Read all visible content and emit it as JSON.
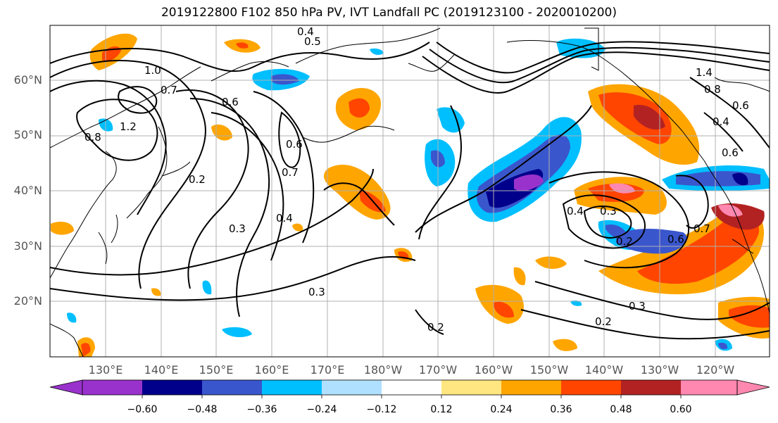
{
  "title": "2019122800 F102 850 hPa PV, IVT Landfall PC (2019123100 - 2020010200)",
  "lat_labels": [
    "60°N",
    "50°N",
    "40°N",
    "30°N",
    "20°N"
  ],
  "lon_labels": [
    "130°E",
    "140°E",
    "150°E",
    "160°E",
    "170°E",
    "180°W",
    "170°W",
    "160°W",
    "150°W",
    "140°W",
    "130°W",
    "120°W"
  ],
  "colorbar": {
    "colors": [
      "#9932cc",
      "#00008b",
      "#3a56cc",
      "#00bfff",
      "#b0e0ff",
      "#ffffff",
      "#ffe680",
      "#ffa500",
      "#ff4500",
      "#b22222",
      "#ff88b0"
    ],
    "tick_labels": [
      "−0.60",
      "−0.48",
      "−0.36",
      "−0.24",
      "−0.12",
      "0.12",
      "0.24",
      "0.36",
      "0.48",
      "0.60"
    ]
  },
  "contour_labels": [
    "0.4",
    "0.5",
    "1.0",
    "0.7",
    "0.6",
    "1.2",
    "0.8",
    "0.2",
    "0.7",
    "0.6",
    "0.3",
    "0.4",
    "0.3",
    "0.2",
    "0.4",
    "0.3",
    "0.2",
    "0.6",
    "0.3",
    "0.2",
    "1.4",
    "0.8",
    "0.6",
    "0.4",
    "0.6",
    "0.7"
  ]
}
